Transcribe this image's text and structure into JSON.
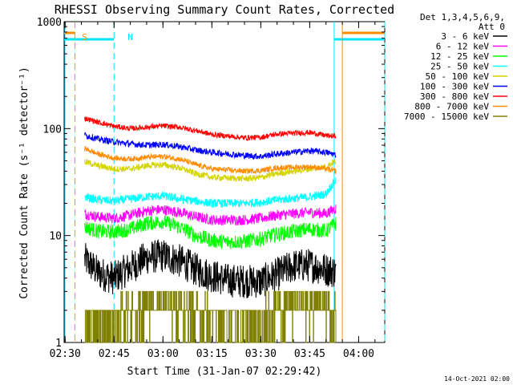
{
  "chart_data": {
    "type": "line",
    "title": "RHESSI Observing Summary Count Rates, Corrected",
    "xlabel": "Start Time (31-Jan-07 02:29:42)",
    "ylabel": "Corrected Count Rate (s⁻¹ detector⁻¹)",
    "ylog": true,
    "ylim": [
      1,
      1000
    ],
    "xlim": [
      "02:29:42",
      "04:08:00"
    ],
    "xtick_labels": [
      "02:30",
      "02:45",
      "03:00",
      "03:15",
      "03:30",
      "03:45",
      "04:00"
    ],
    "ytick_labels": [
      "1",
      "10",
      "100",
      "1000"
    ],
    "legend": {
      "placement": "right-outside",
      "header_lines": [
        "Det 1,3,4,5,6,9,",
        "Att 0"
      ]
    },
    "annotations": [
      {
        "text": "S",
        "time": "02:31:00",
        "color": "#ff8c00"
      },
      {
        "text": "N",
        "time": "02:45:00",
        "color": "#00e5ff"
      }
    ],
    "markers": {
      "saa": {
        "color": "#ff8c00",
        "lines": [
          "02:33:00",
          "03:55:00"
        ],
        "bars": [
          {
            "start": "02:29:42",
            "end": "02:33:00"
          },
          {
            "start": "03:55:00",
            "end": "04:08:00"
          }
        ]
      },
      "night": {
        "color": "#00e5ff",
        "lines": [
          "02:45:00",
          "03:52:30",
          "04:08:00"
        ],
        "bars": [
          {
            "start": "02:29:42",
            "end": "02:45:00"
          },
          {
            "start": "03:52:30",
            "end": "04:08:00"
          }
        ]
      },
      "gaps": {
        "color": "#00e5ff",
        "lines": [
          "02:29:42"
        ]
      }
    },
    "series": [
      {
        "name": "3 - 6 keV",
        "color": "#000000",
        "noise": 0.16,
        "points": [
          [
            "02:36:00",
            6.0
          ],
          [
            "02:40:00",
            4.5
          ],
          [
            "02:45:00",
            4.0
          ],
          [
            "02:50:00",
            5.0
          ],
          [
            "02:55:00",
            6.2
          ],
          [
            "03:00:00",
            6.5
          ],
          [
            "03:05:00",
            5.8
          ],
          [
            "03:10:00",
            4.8
          ],
          [
            "03:15:00",
            4.2
          ],
          [
            "03:20:00",
            3.8
          ],
          [
            "03:30:00",
            3.7
          ],
          [
            "03:35:00",
            4.3
          ],
          [
            "03:40:00",
            5.2
          ],
          [
            "03:45:00",
            5.3
          ],
          [
            "03:50:00",
            4.8
          ],
          [
            "03:53:00",
            4.6
          ]
        ]
      },
      {
        "name": "6 - 12 keV",
        "color": "#ff00ff",
        "noise": 0.05,
        "points": [
          [
            "02:36:00",
            16.0
          ],
          [
            "02:40:00",
            15.0
          ],
          [
            "02:45:00",
            14.5
          ],
          [
            "02:50:00",
            15.5
          ],
          [
            "02:55:00",
            17.0
          ],
          [
            "03:00:00",
            17.5
          ],
          [
            "03:05:00",
            16.5
          ],
          [
            "03:10:00",
            15.0
          ],
          [
            "03:15:00",
            14.0
          ],
          [
            "03:25:00",
            14.0
          ],
          [
            "03:30:00",
            14.5
          ],
          [
            "03:35:00",
            15.5
          ],
          [
            "03:45:00",
            16.5
          ],
          [
            "03:50:00",
            16.0
          ],
          [
            "03:53:00",
            18.0
          ]
        ]
      },
      {
        "name": "12 - 25 keV",
        "color": "#00ff00",
        "noise": 0.07,
        "points": [
          [
            "02:36:00",
            12.0
          ],
          [
            "02:40:00",
            11.0
          ],
          [
            "02:45:00",
            10.8
          ],
          [
            "02:50:00",
            11.5
          ],
          [
            "02:55:00",
            13.0
          ],
          [
            "03:00:00",
            13.5
          ],
          [
            "03:05:00",
            12.0
          ],
          [
            "03:10:00",
            10.0
          ],
          [
            "03:15:00",
            9.0
          ],
          [
            "03:20:00",
            8.7
          ],
          [
            "03:25:00",
            8.8
          ],
          [
            "03:30:00",
            9.3
          ],
          [
            "03:35:00",
            10.3
          ],
          [
            "03:45:00",
            11.5
          ],
          [
            "03:50:00",
            11.0
          ],
          [
            "03:53:00",
            13.0
          ]
        ]
      },
      {
        "name": "25 - 50 keV",
        "color": "#00ffff",
        "noise": 0.04,
        "points": [
          [
            "02:36:00",
            23.0
          ],
          [
            "02:40:00",
            21.5
          ],
          [
            "02:45:00",
            21.0
          ],
          [
            "02:50:00",
            22.0
          ],
          [
            "02:55:00",
            23.0
          ],
          [
            "03:00:00",
            23.5
          ],
          [
            "03:05:00",
            22.0
          ],
          [
            "03:10:00",
            21.0
          ],
          [
            "03:15:00",
            20.0
          ],
          [
            "03:25:00",
            20.0
          ],
          [
            "03:30:00",
            20.5
          ],
          [
            "03:35:00",
            21.5
          ],
          [
            "03:45:00",
            23.0
          ],
          [
            "03:50:00",
            24.5
          ],
          [
            "03:53:00",
            33.0
          ]
        ]
      },
      {
        "name": "50 - 100 keV",
        "color": "#d4d400",
        "noise": 0.03,
        "points": [
          [
            "02:36:00",
            49.0
          ],
          [
            "02:40:00",
            45.0
          ],
          [
            "02:45:00",
            42.0
          ],
          [
            "02:50:00",
            42.0
          ],
          [
            "02:55:00",
            45.0
          ],
          [
            "03:00:00",
            46.0
          ],
          [
            "03:05:00",
            43.0
          ],
          [
            "03:10:00",
            38.0
          ],
          [
            "03:15:00",
            35.0
          ],
          [
            "03:25:00",
            34.0
          ],
          [
            "03:30:00",
            35.0
          ],
          [
            "03:35:00",
            38.0
          ],
          [
            "03:45:00",
            42.0
          ],
          [
            "03:50:00",
            44.0
          ],
          [
            "03:53:00",
            50.0
          ]
        ]
      },
      {
        "name": "100 - 300 keV",
        "color": "#0000ff",
        "noise": 0.03,
        "points": [
          [
            "02:36:00",
            87.0
          ],
          [
            "02:40:00",
            80.0
          ],
          [
            "02:45:00",
            75.0
          ],
          [
            "02:50:00",
            72.0
          ],
          [
            "02:55:00",
            70.0
          ],
          [
            "03:00:00",
            71.0
          ],
          [
            "03:05:00",
            68.0
          ],
          [
            "03:10:00",
            63.0
          ],
          [
            "03:15:00",
            60.0
          ],
          [
            "03:25:00",
            56.0
          ],
          [
            "03:30:00",
            55.0
          ],
          [
            "03:35:00",
            58.0
          ],
          [
            "03:45:00",
            62.0
          ],
          [
            "03:50:00",
            60.0
          ],
          [
            "03:53:00",
            57.0
          ]
        ]
      },
      {
        "name": "300 - 800 keV",
        "color": "#ff0000",
        "noise": 0.025,
        "points": [
          [
            "02:36:00",
            125.0
          ],
          [
            "02:40:00",
            115.0
          ],
          [
            "02:45:00",
            105.0
          ],
          [
            "02:50:00",
            100.0
          ],
          [
            "02:55:00",
            103.0
          ],
          [
            "03:00:00",
            106.0
          ],
          [
            "03:05:00",
            103.0
          ],
          [
            "03:10:00",
            96.0
          ],
          [
            "03:15:00",
            88.0
          ],
          [
            "03:25:00",
            82.0
          ],
          [
            "03:30:00",
            83.0
          ],
          [
            "03:35:00",
            89.0
          ],
          [
            "03:45:00",
            92.0
          ],
          [
            "03:50:00",
            86.0
          ],
          [
            "03:53:00",
            85.0
          ]
        ]
      },
      {
        "name": "800 - 7000 keV",
        "color": "#ff8c00",
        "noise": 0.025,
        "points": [
          [
            "02:36:00",
            65.0
          ],
          [
            "02:40:00",
            58.0
          ],
          [
            "02:45:00",
            53.0
          ],
          [
            "02:50:00",
            52.0
          ],
          [
            "02:55:00",
            54.0
          ],
          [
            "03:00:00",
            55.0
          ],
          [
            "03:05:00",
            52.0
          ],
          [
            "03:10:00",
            46.0
          ],
          [
            "03:15:00",
            42.0
          ],
          [
            "03:25:00",
            40.0
          ],
          [
            "03:30:00",
            40.5
          ],
          [
            "03:35:00",
            43.0
          ],
          [
            "03:45:00",
            44.0
          ],
          [
            "03:50:00",
            42.0
          ],
          [
            "03:53:00",
            40.0
          ]
        ]
      },
      {
        "name": "7000 - 15000 keV",
        "color": "#808000",
        "noise": 0.0,
        "quantized": true,
        "levels": [
          1.0,
          2.0,
          3.0
        ],
        "points": [
          [
            "02:36:00",
            2.0
          ],
          [
            "02:45:00",
            2.0
          ],
          [
            "02:52:00",
            2.3
          ],
          [
            "02:58:00",
            2.5
          ],
          [
            "03:05:00",
            2.3
          ],
          [
            "03:15:00",
            2.0
          ],
          [
            "03:30:00",
            2.0
          ],
          [
            "03:40:00",
            2.4
          ],
          [
            "03:50:00",
            2.3
          ],
          [
            "03:53:00",
            2.2
          ]
        ]
      }
    ]
  },
  "footer": {
    "timestamp": "14-Oct-2021 02:00"
  }
}
